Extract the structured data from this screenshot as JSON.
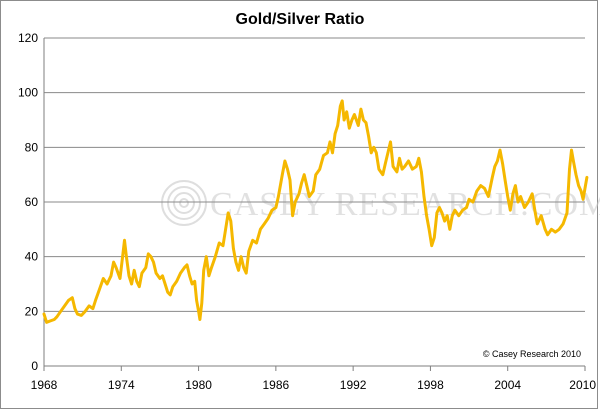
{
  "chart_data": {
    "type": "line",
    "title": "Gold/Silver Ratio",
    "xlabel": "",
    "ylabel": "",
    "xlim": [
      1968,
      2010
    ],
    "ylim": [
      0,
      120
    ],
    "x_ticks": [
      "1968",
      "1974",
      "1980",
      "1986",
      "1992",
      "1998",
      "2004",
      "2010"
    ],
    "y_ticks": [
      "0",
      "20",
      "40",
      "60",
      "80",
      "100",
      "120"
    ],
    "grid": "horizontal",
    "line_color": "#f5b800",
    "copyright": "© Casey Research 2010",
    "watermark": "CASEY RESEARCH.COM",
    "series": [
      {
        "values": [
          [
            1968.0,
            19
          ],
          [
            1968.2,
            16
          ],
          [
            1968.5,
            16.5
          ],
          [
            1968.8,
            17
          ],
          [
            1969.0,
            18
          ],
          [
            1969.3,
            20
          ],
          [
            1969.6,
            22
          ],
          [
            1969.9,
            24
          ],
          [
            1970.2,
            25
          ],
          [
            1970.4,
            21
          ],
          [
            1970.6,
            19
          ],
          [
            1970.9,
            18.5
          ],
          [
            1971.2,
            20
          ],
          [
            1971.5,
            22
          ],
          [
            1971.8,
            21
          ],
          [
            1972.0,
            24
          ],
          [
            1972.3,
            28
          ],
          [
            1972.6,
            32
          ],
          [
            1972.9,
            30
          ],
          [
            1973.2,
            33
          ],
          [
            1973.4,
            38
          ],
          [
            1973.6,
            36
          ],
          [
            1973.9,
            32
          ],
          [
            1974.1,
            40
          ],
          [
            1974.25,
            46
          ],
          [
            1974.4,
            40
          ],
          [
            1974.6,
            33
          ],
          [
            1974.8,
            30
          ],
          [
            1975.0,
            35
          ],
          [
            1975.2,
            31
          ],
          [
            1975.4,
            29
          ],
          [
            1975.6,
            34
          ],
          [
            1975.9,
            36
          ],
          [
            1976.1,
            41
          ],
          [
            1976.3,
            40
          ],
          [
            1976.5,
            38
          ],
          [
            1976.7,
            34
          ],
          [
            1977.0,
            32
          ],
          [
            1977.2,
            33
          ],
          [
            1977.4,
            30
          ],
          [
            1977.6,
            27
          ],
          [
            1977.8,
            26
          ],
          [
            1978.0,
            29
          ],
          [
            1978.3,
            31
          ],
          [
            1978.6,
            34
          ],
          [
            1978.9,
            36
          ],
          [
            1979.1,
            37
          ],
          [
            1979.3,
            33
          ],
          [
            1979.5,
            30
          ],
          [
            1979.7,
            31
          ],
          [
            1979.85,
            24
          ],
          [
            1980.0,
            20
          ],
          [
            1980.1,
            17
          ],
          [
            1980.25,
            23
          ],
          [
            1980.4,
            35
          ],
          [
            1980.6,
            40
          ],
          [
            1980.8,
            33
          ],
          [
            1981.0,
            36
          ],
          [
            1981.3,
            40
          ],
          [
            1981.6,
            45
          ],
          [
            1981.9,
            44
          ],
          [
            1982.1,
            50
          ],
          [
            1982.3,
            56
          ],
          [
            1982.5,
            53
          ],
          [
            1982.7,
            43
          ],
          [
            1982.9,
            38
          ],
          [
            1983.1,
            35
          ],
          [
            1983.3,
            40
          ],
          [
            1983.5,
            36
          ],
          [
            1983.7,
            34
          ],
          [
            1983.9,
            42
          ],
          [
            1984.2,
            46
          ],
          [
            1984.5,
            45
          ],
          [
            1984.8,
            50
          ],
          [
            1985.1,
            52
          ],
          [
            1985.4,
            54
          ],
          [
            1985.7,
            57
          ],
          [
            1986.0,
            58
          ],
          [
            1986.2,
            62
          ],
          [
            1986.5,
            70
          ],
          [
            1986.7,
            75
          ],
          [
            1986.9,
            72
          ],
          [
            1987.1,
            68
          ],
          [
            1987.3,
            55
          ],
          [
            1987.5,
            60
          ],
          [
            1987.8,
            63
          ],
          [
            1988.0,
            67
          ],
          [
            1988.2,
            70
          ],
          [
            1988.4,
            66
          ],
          [
            1988.6,
            62
          ],
          [
            1988.9,
            64
          ],
          [
            1989.1,
            70
          ],
          [
            1989.4,
            72
          ],
          [
            1989.7,
            77
          ],
          [
            1990.0,
            78
          ],
          [
            1990.2,
            82
          ],
          [
            1990.4,
            78
          ],
          [
            1990.6,
            85
          ],
          [
            1990.8,
            88
          ],
          [
            1991.0,
            95
          ],
          [
            1991.15,
            97
          ],
          [
            1991.3,
            90
          ],
          [
            1991.5,
            93
          ],
          [
            1991.7,
            87
          ],
          [
            1991.9,
            90
          ],
          [
            1992.1,
            92
          ],
          [
            1992.4,
            88
          ],
          [
            1992.6,
            94
          ],
          [
            1992.8,
            90
          ],
          [
            1993.0,
            89
          ],
          [
            1993.2,
            84
          ],
          [
            1993.4,
            78
          ],
          [
            1993.6,
            80
          ],
          [
            1993.8,
            78
          ],
          [
            1994.0,
            72
          ],
          [
            1994.3,
            70
          ],
          [
            1994.5,
            74
          ],
          [
            1994.7,
            78
          ],
          [
            1994.9,
            82
          ],
          [
            1995.1,
            73
          ],
          [
            1995.4,
            71
          ],
          [
            1995.6,
            76
          ],
          [
            1995.8,
            72
          ],
          [
            1996.0,
            73
          ],
          [
            1996.3,
            75
          ],
          [
            1996.6,
            72
          ],
          [
            1996.9,
            73
          ],
          [
            1997.1,
            76
          ],
          [
            1997.3,
            71
          ],
          [
            1997.5,
            62
          ],
          [
            1997.7,
            55
          ],
          [
            1997.9,
            50
          ],
          [
            1998.1,
            44
          ],
          [
            1998.3,
            47
          ],
          [
            1998.5,
            56
          ],
          [
            1998.7,
            58
          ],
          [
            1998.9,
            56
          ],
          [
            1999.1,
            53
          ],
          [
            1999.3,
            55
          ],
          [
            1999.5,
            50
          ],
          [
            1999.7,
            55
          ],
          [
            1999.9,
            57
          ],
          [
            2000.2,
            55
          ],
          [
            2000.5,
            57
          ],
          [
            2000.8,
            58
          ],
          [
            2001.0,
            61
          ],
          [
            2001.3,
            60
          ],
          [
            2001.6,
            64
          ],
          [
            2001.9,
            66
          ],
          [
            2002.2,
            65
          ],
          [
            2002.5,
            62
          ],
          [
            2002.8,
            69
          ],
          [
            2003.0,
            73
          ],
          [
            2003.2,
            75
          ],
          [
            2003.4,
            79
          ],
          [
            2003.6,
            74
          ],
          [
            2003.8,
            68
          ],
          [
            2004.0,
            62
          ],
          [
            2004.2,
            57
          ],
          [
            2004.4,
            63
          ],
          [
            2004.6,
            66
          ],
          [
            2004.8,
            60
          ],
          [
            2005.0,
            62
          ],
          [
            2005.3,
            58
          ],
          [
            2005.6,
            60
          ],
          [
            2005.9,
            63
          ],
          [
            2006.1,
            57
          ],
          [
            2006.3,
            52
          ],
          [
            2006.6,
            55
          ],
          [
            2006.9,
            50
          ],
          [
            2007.1,
            48
          ],
          [
            2007.4,
            50
          ],
          [
            2007.7,
            49
          ],
          [
            2008.0,
            50
          ],
          [
            2008.3,
            52
          ],
          [
            2008.6,
            56
          ],
          [
            2008.8,
            72
          ],
          [
            2008.95,
            79
          ],
          [
            2009.1,
            75
          ],
          [
            2009.3,
            70
          ],
          [
            2009.5,
            66
          ],
          [
            2009.7,
            64
          ],
          [
            2009.85,
            61
          ],
          [
            2010.0,
            65
          ],
          [
            2010.15,
            69
          ]
        ]
      }
    ]
  }
}
